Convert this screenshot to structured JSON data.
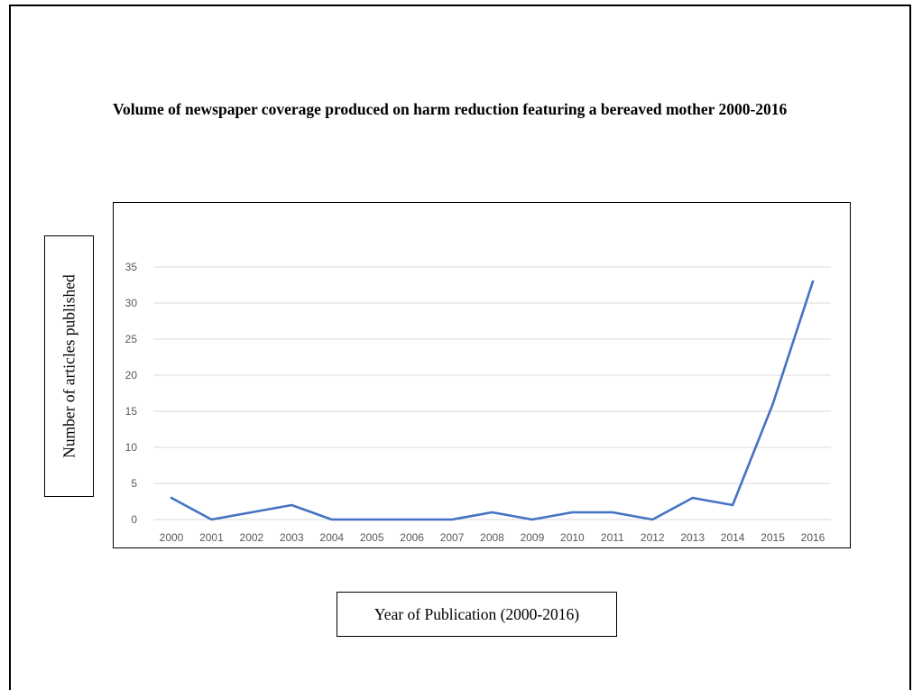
{
  "chart_data": {
    "type": "line",
    "title": "Volume of newspaper coverage produced on harm reduction featuring a bereaved mother 2000-2016",
    "xlabel": "Year of Publication (2000-2016)",
    "ylabel": "Number of articles published",
    "categories": [
      "2000",
      "2001",
      "2002",
      "2003",
      "2004",
      "2005",
      "2006",
      "2007",
      "2008",
      "2009",
      "2010",
      "2011",
      "2012",
      "2013",
      "2014",
      "2015",
      "2016"
    ],
    "series": [
      {
        "values": [
          3,
          0,
          1,
          2,
          0,
          0,
          0,
          0,
          1,
          0,
          1,
          1,
          0,
          3,
          2,
          16,
          33
        ]
      }
    ],
    "yticks": [
      "0",
      "5",
      "10",
      "15",
      "20",
      "25",
      "30",
      "35"
    ],
    "ylim": [
      0,
      35
    ],
    "grid": true,
    "legend": "none",
    "colors": {
      "line": "#4472C4",
      "grid": "#D9D9D9",
      "tick_text": "#595959"
    }
  }
}
